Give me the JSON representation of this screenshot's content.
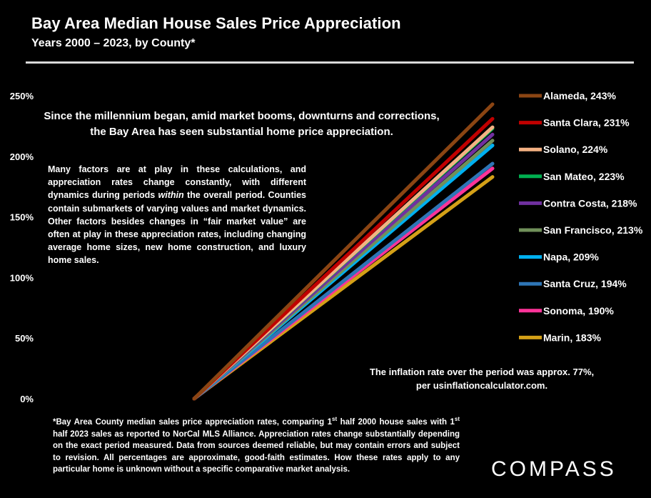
{
  "header": {
    "title": "Bay Area Median House Sales Price Appreciation",
    "subtitle": "Years 2000 – 2023, by County*"
  },
  "annotations": {
    "headline": "Since the millennium began, amid market booms, downturns and corrections, the Bay Area has seen substantial home price appreciation.",
    "factors_part1": "Many factors are at play in these calculations, and appreciation rates change constantly, with different dynamics during periods ",
    "factors_emph": "within",
    "factors_part2": " the overall period. Counties contain submarkets of varying values and market dynamics. Other factors besides changes in “fair market value” are often at play in these appreciation rates, including  changing average home sizes, new home construction, and luxury home sales.",
    "inflation": "The inflation rate over the period was approx. 77%, per usinflationcalculator.com.",
    "footnote_part1": "*Bay Area County median sales price appreciation rates, comparing 1",
    "footnote_sup1": "st",
    "footnote_part2": " half 2000 house sales with 1",
    "footnote_sup2": "st",
    "footnote_part3": " half 2023 sales as reported to NorCal MLS Alliance. Appreciation rates change substantially depending on the exact period measured. Data from sources deemed reliable, but may contain errors and subject to revision. All percentages are approximate, good-faith estimates. How these rates apply to any particular home is unknown without a specific comparative market analysis."
  },
  "logo": {
    "text": "COMPASS"
  },
  "chart_data": {
    "type": "line",
    "x": [
      "2000",
      "2023"
    ],
    "ylim": [
      0,
      250
    ],
    "yticks": [
      0,
      50,
      100,
      150,
      200,
      250
    ],
    "ytick_labels": [
      "0%",
      "50%",
      "100%",
      "150%",
      "200%",
      "250%"
    ],
    "grid": false,
    "legend_position": "right",
    "series": [
      {
        "name": "Alameda, 243%",
        "color": "#8B4513",
        "values": [
          0,
          243
        ]
      },
      {
        "name": "Santa Clara, 231%",
        "color": "#C00000",
        "values": [
          0,
          231
        ]
      },
      {
        "name": "Solano, 224%",
        "color": "#F4B183",
        "values": [
          0,
          224
        ]
      },
      {
        "name": "San Mateo, 223%",
        "color": "#00B050",
        "values": [
          0,
          223
        ]
      },
      {
        "name": "Contra Costa, 218%",
        "color": "#7030A0",
        "values": [
          0,
          218
        ]
      },
      {
        "name": "San Francisco, 213%",
        "color": "#70905A",
        "values": [
          0,
          213
        ]
      },
      {
        "name": "Napa, 209%",
        "color": "#00B0F0",
        "values": [
          0,
          209
        ]
      },
      {
        "name": "Santa Cruz, 194%",
        "color": "#2E75B6",
        "values": [
          0,
          194
        ]
      },
      {
        "name": "Sonoma, 190%",
        "color": "#FF3399",
        "values": [
          0,
          190
        ]
      },
      {
        "name": "Marin, 183%",
        "color": "#D4A017",
        "values": [
          0,
          183
        ]
      }
    ]
  }
}
